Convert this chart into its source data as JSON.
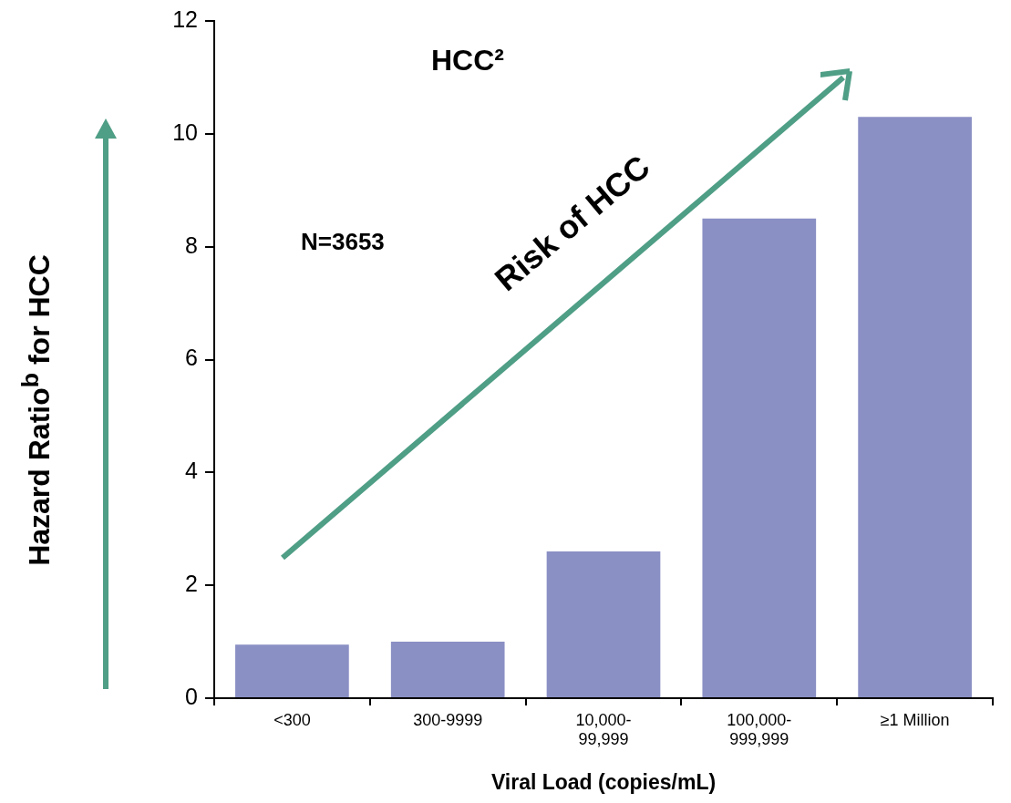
{
  "chart_data": {
    "type": "bar",
    "title": "HCC²",
    "ylabel": "Hazard Ratio$^{b}$ for HCC",
    "xlabel": "Viral Load (copies/mL)",
    "categories": [
      "<300",
      "300-9999",
      "10,000-\n99,999",
      "100,000-\n999,999",
      "≥1 Million"
    ],
    "values": [
      0.95,
      1.0,
      2.6,
      8.5,
      10.3
    ],
    "color": "#8a8fc4",
    "ylim": [
      0,
      12
    ],
    "yticks": [
      0,
      2,
      4,
      6,
      8,
      10,
      12
    ],
    "grid": false,
    "legend": false,
    "annotations": [
      "N=3653",
      "Risk of HCC"
    ]
  }
}
